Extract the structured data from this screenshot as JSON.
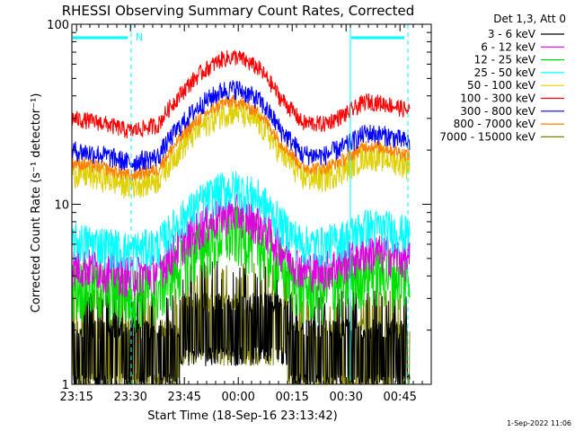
{
  "chart_data": {
    "type": "line",
    "title": "RHESSI Observing Summary Count Rates, Corrected",
    "xlabel": "Start Time (18-Sep-16 23:13:42)",
    "ylabel": "Corrected Count Rate (s⁻¹ detector⁻¹)",
    "yscale": "log",
    "ylim": [
      1,
      100
    ],
    "xlim_minutes_after_start": [
      0,
      100
    ],
    "x_ticks": [
      {
        "label": "23:15",
        "min": 1.3
      },
      {
        "label": "23:30",
        "min": 16.3
      },
      {
        "label": "23:45",
        "min": 31.3
      },
      {
        "label": "00:00",
        "min": 46.3
      },
      {
        "label": "00:15",
        "min": 61.3
      },
      {
        "label": "00:30",
        "min": 76.3
      },
      {
        "label": "00:45",
        "min": 91.3
      }
    ],
    "y_ticks": [
      {
        "label": "1",
        "value": 1
      },
      {
        "label": "10",
        "value": 10
      },
      {
        "label": "100",
        "value": 100
      }
    ],
    "legend_header": "Det 1,3, Att 0",
    "legend_position": "right",
    "footer_date": "1-Sep-2022 11:06",
    "night_intervals": [
      {
        "start_min": 0,
        "end_min": 16.5,
        "label": "N"
      },
      {
        "start_min": 77.5,
        "end_min": 93.5,
        "label": ""
      }
    ],
    "baseline_flux_profile": {
      "x_min": [
        0,
        8,
        16,
        24,
        30,
        36,
        42,
        46,
        52,
        58,
        64,
        70,
        76,
        82,
        88,
        94
      ],
      "factor": [
        1.0,
        0.95,
        0.85,
        0.92,
        1.35,
        1.8,
        2.15,
        2.2,
        1.9,
        1.3,
        0.95,
        0.93,
        1.05,
        1.25,
        1.2,
        1.1
      ]
    },
    "series": [
      {
        "name": "3 - 6 keV",
        "color": "#000000",
        "base": 1.8,
        "noise": 1.0
      },
      {
        "name": "6 - 12 keV",
        "color": "#e000e0",
        "base": 4.6,
        "noise": 0.12
      },
      {
        "name": "12 - 25 keV",
        "color": "#00e000",
        "base": 3.6,
        "noise": 0.18
      },
      {
        "name": "25 - 50 keV",
        "color": "#00ffff",
        "base": 6.3,
        "noise": 0.12
      },
      {
        "name": "50 - 100 keV",
        "color": "#e0d000",
        "base": 15,
        "noise": 0.08
      },
      {
        "name": "100 - 300 keV",
        "color": "#ff0000",
        "base": 30,
        "noise": 0.05
      },
      {
        "name": "300 - 800 keV",
        "color": "#0000ff",
        "base": 20,
        "noise": 0.06
      },
      {
        "name": "800 - 7000 keV",
        "color": "#ff8000",
        "base": 17,
        "noise": 0.04
      },
      {
        "name": "7000 - 15000 keV",
        "color": "#808000",
        "base": 1.5,
        "noise": 1.0
      }
    ]
  }
}
